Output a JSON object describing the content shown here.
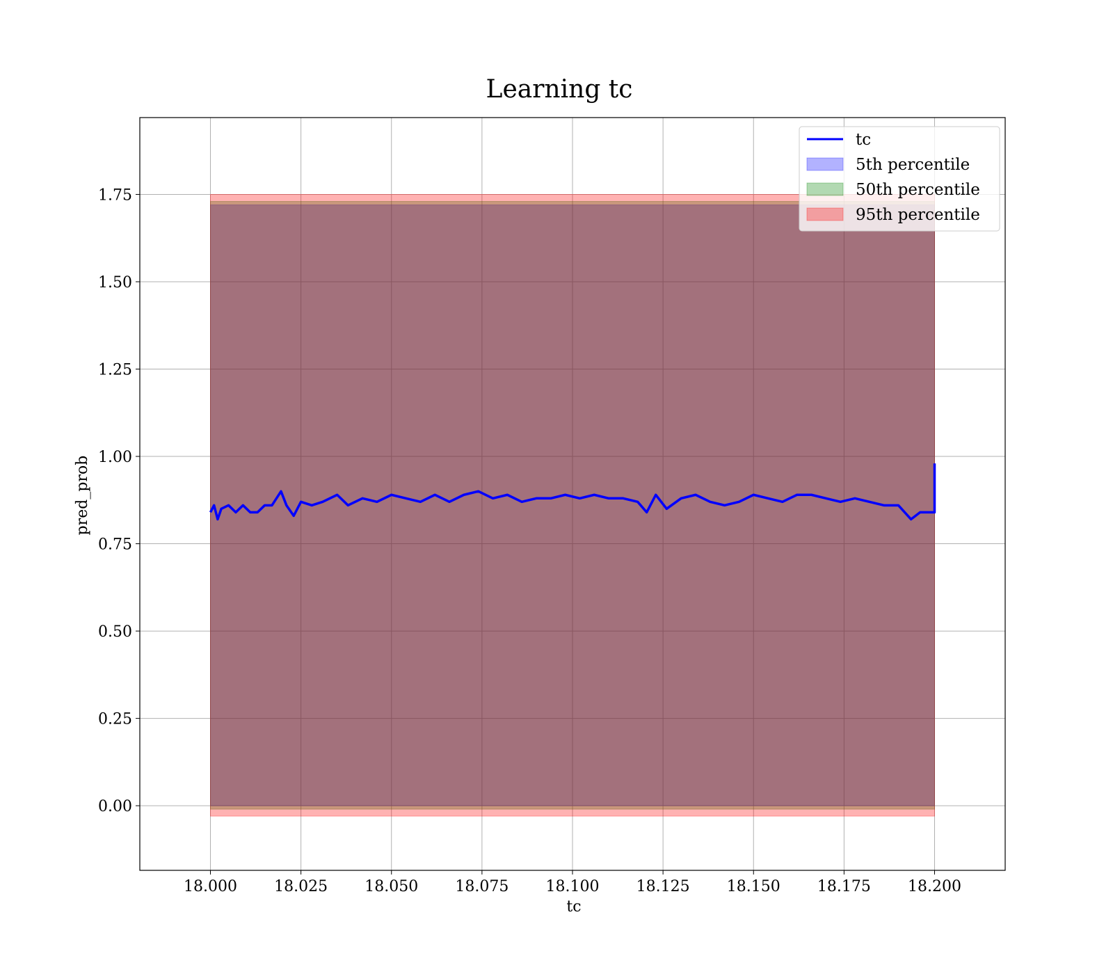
{
  "chart_data": {
    "type": "line",
    "title": "Learning tc",
    "xlabel": "tc",
    "ylabel": "pred_prob",
    "xlim": [
      17.9805,
      18.2195
    ],
    "ylim": [
      -0.185,
      1.97
    ],
    "grid": true,
    "legend_position": "top-right",
    "x_ticks": [
      18.0,
      18.025,
      18.05,
      18.075,
      18.1,
      18.125,
      18.15,
      18.175,
      18.2
    ],
    "x_tick_labels": [
      "18.000",
      "18.025",
      "18.050",
      "18.075",
      "18.100",
      "18.125",
      "18.150",
      "18.175",
      "18.200"
    ],
    "y_ticks": [
      0.0,
      0.25,
      0.5,
      0.75,
      1.0,
      1.25,
      1.5,
      1.75
    ],
    "y_tick_labels": [
      "0.00",
      "0.25",
      "0.50",
      "0.75",
      "1.00",
      "1.25",
      "1.50",
      "1.75"
    ],
    "series": [
      {
        "name": "tc",
        "kind": "line",
        "color": "#0000ff",
        "x": [
          18.0,
          18.001,
          18.002,
          18.003,
          18.005,
          18.007,
          18.009,
          18.011,
          18.013,
          18.015,
          18.017,
          18.0195,
          18.021,
          18.023,
          18.025,
          18.028,
          18.031,
          18.035,
          18.038,
          18.042,
          18.046,
          18.05,
          18.054,
          18.058,
          18.062,
          18.066,
          18.07,
          18.074,
          18.078,
          18.082,
          18.086,
          18.09,
          18.094,
          18.098,
          18.102,
          18.106,
          18.11,
          18.114,
          18.118,
          18.1205,
          18.123,
          18.126,
          18.13,
          18.134,
          18.138,
          18.142,
          18.146,
          18.15,
          18.154,
          18.158,
          18.162,
          18.166,
          18.17,
          18.174,
          18.178,
          18.182,
          18.186,
          18.19,
          18.1935,
          18.196,
          18.198,
          18.1995,
          18.2,
          18.2
        ],
        "y": [
          0.84,
          0.86,
          0.82,
          0.85,
          0.86,
          0.84,
          0.86,
          0.84,
          0.84,
          0.86,
          0.86,
          0.9,
          0.86,
          0.83,
          0.87,
          0.86,
          0.87,
          0.89,
          0.86,
          0.88,
          0.87,
          0.89,
          0.88,
          0.87,
          0.89,
          0.87,
          0.89,
          0.9,
          0.88,
          0.89,
          0.87,
          0.88,
          0.88,
          0.89,
          0.88,
          0.89,
          0.88,
          0.88,
          0.87,
          0.84,
          0.89,
          0.85,
          0.88,
          0.89,
          0.87,
          0.86,
          0.87,
          0.89,
          0.88,
          0.87,
          0.89,
          0.89,
          0.88,
          0.87,
          0.88,
          0.87,
          0.86,
          0.86,
          0.82,
          0.84,
          0.84,
          0.84,
          0.84,
          0.98
        ]
      },
      {
        "name": "5th percentile",
        "kind": "band",
        "color": "#0000ff",
        "opacity": 0.3,
        "x": [
          18.0,
          18.2
        ],
        "lower": [
          0.0,
          0.0
        ],
        "upper": [
          1.72,
          1.72
        ]
      },
      {
        "name": "50th percentile",
        "kind": "band",
        "color": "#008000",
        "opacity": 0.3,
        "x": [
          18.0,
          18.2
        ],
        "lower": [
          -0.01,
          -0.01
        ],
        "upper": [
          1.73,
          1.73
        ]
      },
      {
        "name": "95th percentile",
        "kind": "band",
        "color": "#ff0000",
        "opacity": 0.3,
        "x": [
          18.0,
          18.2
        ],
        "lower": [
          -0.03,
          -0.03
        ],
        "upper": [
          1.75,
          1.75
        ]
      }
    ]
  }
}
